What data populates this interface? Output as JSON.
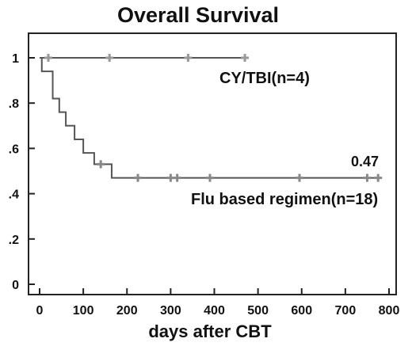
{
  "chart_data": {
    "type": "line",
    "subtype": "kaplan-meier step",
    "title": "Overall Survival",
    "xlabel": "days after CBT",
    "ylabel": "",
    "xlim": [
      0,
      800
    ],
    "ylim": [
      0,
      1
    ],
    "x_ticks": [
      0,
      100,
      200,
      300,
      400,
      500,
      600,
      700,
      800
    ],
    "y_ticks": [
      0,
      0.2,
      0.4,
      0.6,
      0.8,
      1
    ],
    "y_tick_labels": [
      "0",
      ".2",
      ".4",
      ".6",
      ".8",
      "1"
    ],
    "grid": false,
    "series": [
      {
        "name": "CY/TBI(n=4)",
        "color": "#555555",
        "censor_color": "#999999",
        "steps": [
          [
            0,
            1.0
          ],
          [
            470,
            1.0
          ]
        ],
        "censored": [
          [
            20,
            1.0
          ],
          [
            160,
            1.0
          ],
          [
            340,
            1.0
          ],
          [
            470,
            1.0
          ]
        ]
      },
      {
        "name": "Flu based regimen(n=18)",
        "color": "#555555",
        "censor_color": "#888888",
        "steps": [
          [
            0,
            1.0
          ],
          [
            5,
            0.94
          ],
          [
            30,
            0.82
          ],
          [
            45,
            0.76
          ],
          [
            60,
            0.7
          ],
          [
            80,
            0.64
          ],
          [
            100,
            0.58
          ],
          [
            125,
            0.53
          ],
          [
            165,
            0.47
          ],
          [
            775,
            0.47
          ]
        ],
        "censored": [
          [
            140,
            0.53
          ],
          [
            225,
            0.47
          ],
          [
            300,
            0.47
          ],
          [
            315,
            0.47
          ],
          [
            390,
            0.47
          ],
          [
            595,
            0.47
          ],
          [
            750,
            0.47
          ],
          [
            775,
            0.47
          ]
        ]
      }
    ],
    "annotations": [
      {
        "text": "0.47"
      }
    ]
  }
}
